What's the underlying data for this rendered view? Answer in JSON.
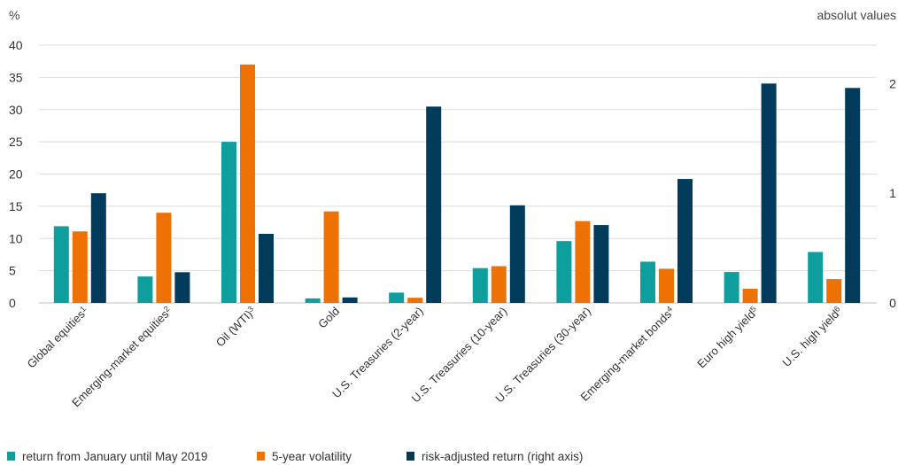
{
  "chart_data": {
    "type": "bar",
    "y_left_unit": "%",
    "y_right_unit": "absolut values",
    "ylim_left": [
      0,
      40
    ],
    "y_left_ticks": [
      0,
      5,
      10,
      15,
      20,
      25,
      30,
      35,
      40
    ],
    "ylim_right": [
      0,
      2.35
    ],
    "y_right_ticks": [
      0,
      1,
      2
    ],
    "grid": "horizontal",
    "legend_position": "bottom-left",
    "categories": [
      {
        "label": "Global equities",
        "sup": "1"
      },
      {
        "label": "Emerging-market equities",
        "sup": "2"
      },
      {
        "label": "Oil (WTI)",
        "sup": "3"
      },
      {
        "label": "Gold",
        "sup": ""
      },
      {
        "label": "U.S. Treasuries (2-year)",
        "sup": ""
      },
      {
        "label": "U.S. Treasuries (10-year)",
        "sup": ""
      },
      {
        "label": "U.S. Treasuries (30-year)",
        "sup": ""
      },
      {
        "label": "Emerging-market bonds",
        "sup": "4"
      },
      {
        "label": "Euro high yield",
        "sup": "5"
      },
      {
        "label": "U.S. high yield",
        "sup": "6"
      }
    ],
    "series": [
      {
        "name": "return from January until May 2019",
        "color": "#0e9e9e",
        "axis": "left",
        "values": [
          11.9,
          4.1,
          25.0,
          0.7,
          1.6,
          5.4,
          9.6,
          6.4,
          4.8,
          7.9
        ]
      },
      {
        "name": "5-year volatility",
        "color": "#ee7203",
        "axis": "left",
        "values": [
          11.1,
          14.0,
          37.0,
          14.2,
          0.8,
          5.7,
          12.7,
          5.3,
          2.2,
          3.7
        ]
      },
      {
        "name": "risk-adjusted return (right axis)",
        "color": "#003b5c",
        "axis": "right",
        "values": [
          1.0,
          0.28,
          0.63,
          0.05,
          1.79,
          0.89,
          0.71,
          1.13,
          2.0,
          1.96
        ]
      }
    ]
  }
}
